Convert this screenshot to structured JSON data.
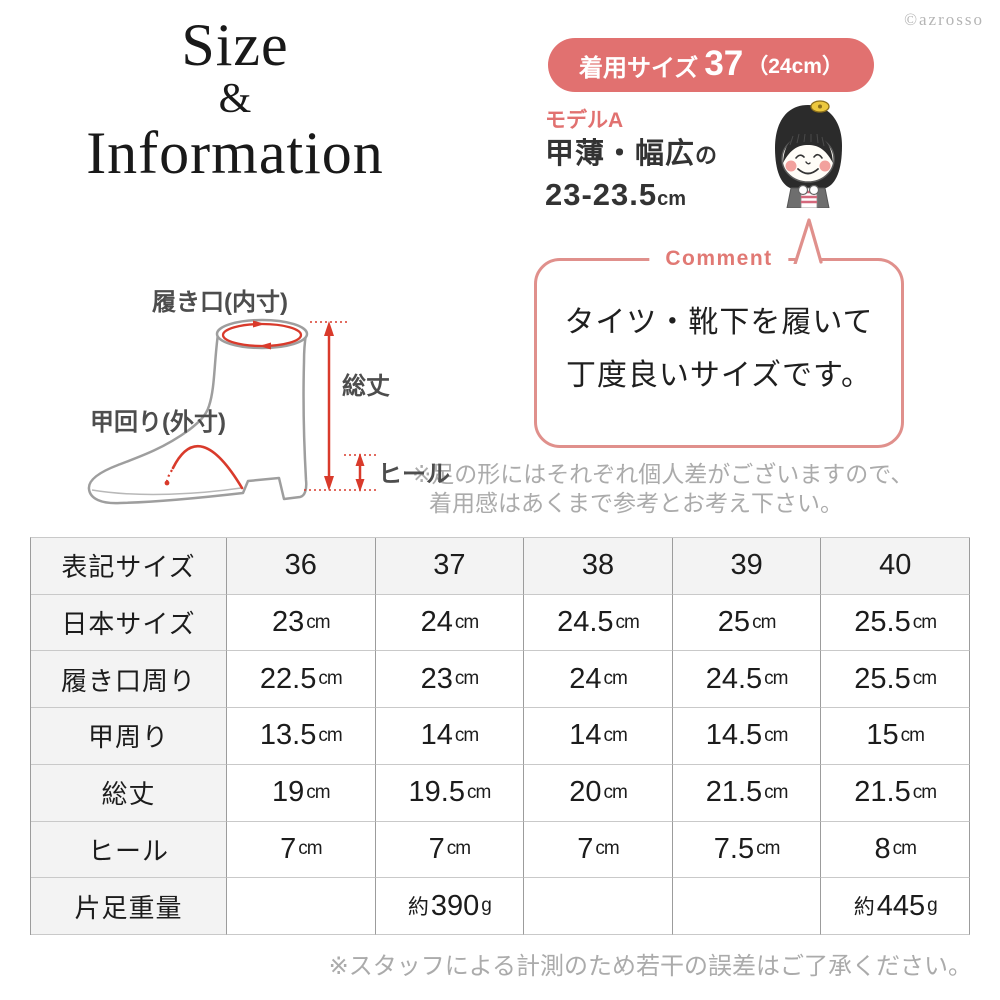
{
  "page": {
    "copyright": "©azrosso"
  },
  "title": {
    "line1": "Size",
    "line2": "&",
    "line3": "Information"
  },
  "fit_badge": {
    "prefix": "着用サイズ",
    "size": "37",
    "note": "（24cm）"
  },
  "model": {
    "label": "モデルA",
    "feature": "甲薄・幅広",
    "particle": "の",
    "foot_size": "23-23.5",
    "unit": "cm"
  },
  "comment": {
    "label": "Comment",
    "line1": "タイツ・靴下を履いて",
    "line2": "丁度良いサイズです。"
  },
  "fit_note": {
    "line1": "※足の形にはそれぞれ個人差がございますので、",
    "line2": "着用感はあくまで参考とお考え下さい。"
  },
  "diagram": {
    "labels": {
      "opening": "履き口(内寸)",
      "instep": "甲回り(外寸)",
      "total_height": "総丈",
      "heel": "ヒール"
    }
  },
  "size_table": {
    "header_label": "表記サイズ",
    "header_values": [
      "36",
      "37",
      "38",
      "39",
      "40"
    ],
    "rows": [
      {
        "label": "日本サイズ",
        "cells": [
          "23cm",
          "24cm",
          "24.5cm",
          "25cm",
          "25.5cm"
        ]
      },
      {
        "label": "履き口周り",
        "cells": [
          "22.5cm",
          "23cm",
          "24cm",
          "24.5cm",
          "25.5cm"
        ]
      },
      {
        "label": "甲周り",
        "cells": [
          "13.5cm",
          "14cm",
          "14cm",
          "14.5cm",
          "15cm"
        ]
      },
      {
        "label": "総丈",
        "cells": [
          "19cm",
          "19.5cm",
          "20cm",
          "21.5cm",
          "21.5cm"
        ]
      },
      {
        "label": "ヒール",
        "cells": [
          "7cm",
          "7cm",
          "7cm",
          "7.5cm",
          "8cm"
        ]
      },
      {
        "label": "片足重量",
        "cells": [
          "",
          "約390g",
          "",
          "",
          "約445g"
        ]
      }
    ]
  },
  "table_note": "※スタッフによる計測のため若干の誤差はご了承ください。",
  "colors": {
    "accent_pink": "#e17170",
    "bubble_border": "#e0908c",
    "measure_red": "#d93a2b",
    "boot_outline": "#9e9e9e",
    "note_gray": "#ababab",
    "table_header_bg": "#f3f3f3"
  }
}
